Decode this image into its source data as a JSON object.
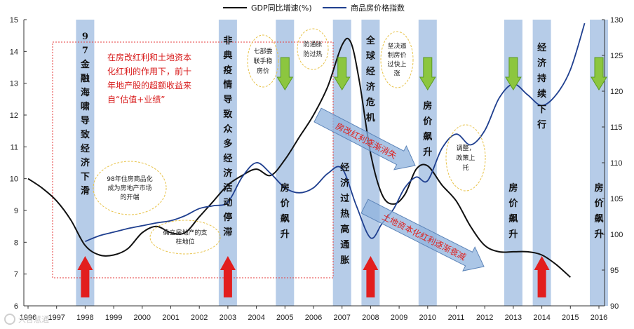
{
  "chart_data": {
    "type": "line",
    "x": [
      "1996",
      "1997",
      "1998",
      "1999",
      "2000",
      "2001",
      "2002",
      "2003",
      "2004",
      "2005",
      "2006",
      "2007",
      "2008",
      "2009",
      "2010",
      "2011",
      "2012",
      "2013",
      "2014",
      "2015",
      "2016"
    ],
    "left_axis": {
      "ylim": [
        6,
        15
      ],
      "ticks": [
        "6",
        "7",
        "8",
        "9",
        "10",
        "11",
        "12",
        "13",
        "14",
        "15"
      ]
    },
    "right_axis": {
      "ylim": [
        90,
        130
      ],
      "ticks": [
        "90",
        "95",
        "100",
        "105",
        "110",
        "115",
        "120",
        "125",
        "130"
      ]
    },
    "series": [
      {
        "name": "GDP同比增速(%)",
        "axis": "left",
        "color": "#111111",
        "points": [
          [
            1996.0,
            10.0
          ],
          [
            1996.5,
            9.7
          ],
          [
            1997.0,
            9.3
          ],
          [
            1997.5,
            8.7
          ],
          [
            1998.0,
            7.9
          ],
          [
            1998.5,
            7.6
          ],
          [
            1999.0,
            7.6
          ],
          [
            1999.5,
            7.8
          ],
          [
            2000.0,
            8.3
          ],
          [
            2000.5,
            8.5
          ],
          [
            2001.0,
            8.3
          ],
          [
            2001.5,
            8.3
          ],
          [
            2002.0,
            8.8
          ],
          [
            2002.5,
            9.3
          ],
          [
            2003.0,
            9.8
          ],
          [
            2003.5,
            10.1
          ],
          [
            2004.0,
            10.3
          ],
          [
            2004.5,
            10.1
          ],
          [
            2005.0,
            10.6
          ],
          [
            2005.5,
            11.3
          ],
          [
            2006.0,
            12.0
          ],
          [
            2006.5,
            12.9
          ],
          [
            2007.0,
            14.2
          ],
          [
            2007.3,
            14.3
          ],
          [
            2007.6,
            13.1
          ],
          [
            2008.0,
            10.8
          ],
          [
            2008.4,
            9.5
          ],
          [
            2008.8,
            9.2
          ],
          [
            2009.2,
            9.5
          ],
          [
            2009.6,
            10.3
          ],
          [
            2010.0,
            10.4
          ],
          [
            2010.5,
            9.8
          ],
          [
            2011.0,
            9.3
          ],
          [
            2011.5,
            8.5
          ],
          [
            2012.0,
            7.9
          ],
          [
            2012.5,
            7.7
          ],
          [
            2013.0,
            7.7
          ],
          [
            2013.5,
            7.7
          ],
          [
            2014.0,
            7.6
          ],
          [
            2014.5,
            7.3
          ],
          [
            2015.0,
            6.9
          ]
        ]
      },
      {
        "name": "商品房价格指数",
        "axis": "right",
        "color": "#1f3f8f",
        "points": [
          [
            1998.0,
            99.0
          ],
          [
            1998.5,
            99.8
          ],
          [
            1999.0,
            100.3
          ],
          [
            1999.5,
            100.8
          ],
          [
            2000.0,
            101.2
          ],
          [
            2000.5,
            101.6
          ],
          [
            2001.0,
            101.9
          ],
          [
            2001.5,
            102.6
          ],
          [
            2002.0,
            103.6
          ],
          [
            2002.5,
            104.0
          ],
          [
            2003.0,
            104.5
          ],
          [
            2003.5,
            108.0
          ],
          [
            2004.0,
            110.0
          ],
          [
            2004.5,
            108.5
          ],
          [
            2005.0,
            106.5
          ],
          [
            2005.5,
            105.8
          ],
          [
            2006.0,
            106.5
          ],
          [
            2006.5,
            108.5
          ],
          [
            2007.0,
            109.2
          ],
          [
            2007.5,
            104.0
          ],
          [
            2008.0,
            99.5
          ],
          [
            2008.4,
            101.5
          ],
          [
            2008.8,
            103.5
          ],
          [
            2009.2,
            106.5
          ],
          [
            2009.6,
            108.0
          ],
          [
            2010.0,
            107.5
          ],
          [
            2010.5,
            112.0
          ],
          [
            2011.0,
            114.0
          ],
          [
            2011.5,
            112.5
          ],
          [
            2012.0,
            114.5
          ],
          [
            2012.5,
            119.0
          ],
          [
            2013.0,
            121.0
          ],
          [
            2013.5,
            119.5
          ],
          [
            2014.0,
            118.0
          ],
          [
            2014.5,
            119.5
          ],
          [
            2015.0,
            123.0
          ],
          [
            2015.5,
            129.5
          ]
        ]
      }
    ],
    "legend": {
      "position": "top"
    },
    "bands": [
      {
        "x": 1998.0,
        "label": "97全融海嘯导致经济下滑",
        "shown": "9 7 金 融 海 啸 导 致 经 济 下 滑"
      },
      {
        "x": 2003.0,
        "label": "非典疫情导致众多经济活动停滞",
        "shown": "非 典 疫 情 导 致 众 多 经 济 活 动 停 滞"
      },
      {
        "x": 2005.0,
        "label": "房价飙升",
        "shown": "房 价 飙 升"
      },
      {
        "x": 2007.0,
        "label": "经济过热高通胀",
        "shown": "经 济 过 热 高 通 胀"
      },
      {
        "x": 2008.0,
        "label": "全球经济危机",
        "shown": "全 球 经 济 危 机"
      },
      {
        "x": 2010.0,
        "label": "房价飙升",
        "shown": "房 价 飙 升"
      },
      {
        "x": 2013.0,
        "label": "房价飙升",
        "shown": "房 价 飙 升"
      },
      {
        "x": 2014.0,
        "label": "经济持续下行",
        "shown": "经 济 持 续 下 行"
      },
      {
        "x": 2016.0,
        "label": "房价飙升",
        "shown": "房 价 飙 升"
      }
    ],
    "annotations": {
      "red_box_text": [
        "在房改红利和土地资本",
        "化红利的作用下，前十",
        "年地产股的超额收益来",
        "自“估值+业绩”"
      ],
      "bubble_1998": [
        "98年住房商品化",
        "成为房地产市场",
        "的开端"
      ],
      "bubble_2001": [
        "确立房地产的支",
        "柱地位"
      ],
      "bubble_2004": [
        "七部委",
        "联手稳",
        "房价"
      ],
      "bubble_2006": [
        "防通胀",
        "防过热"
      ],
      "bubble_2009": [
        "坚决遏",
        "制房价",
        "过快上",
        "涨"
      ],
      "bubble_2011": [
        "调整，",
        "政策上",
        "托"
      ],
      "arrow_1": "房改红利逐渐消失",
      "arrow_2": "土地资本化红利逐渐衰减"
    },
    "watermark": "大智慧通"
  }
}
